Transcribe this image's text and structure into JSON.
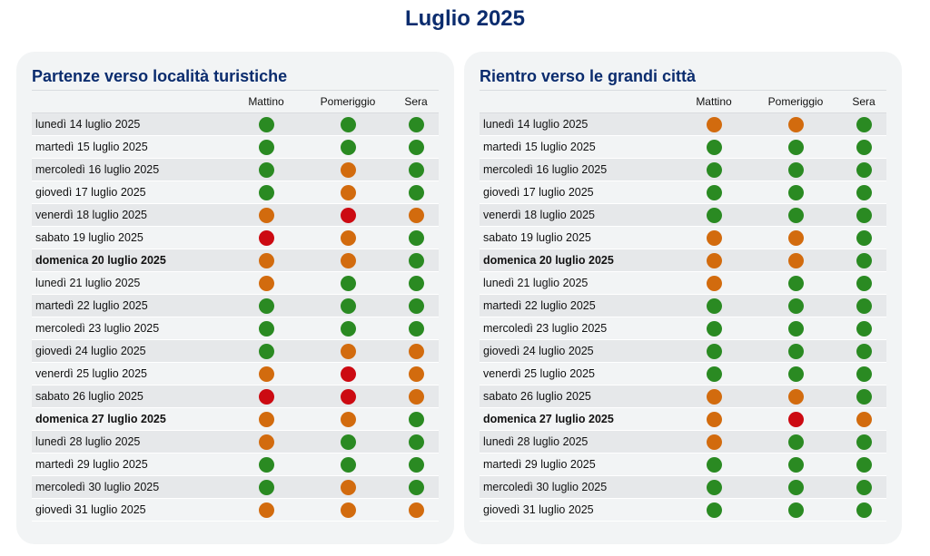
{
  "page_title": "Luglio 2025",
  "colors": {
    "green": "#2a8a22",
    "orange": "#d26b0e",
    "red": "#cc0a12",
    "title": "#0b2c6e"
  },
  "columns": [
    "Mattino",
    "Pomeriggio",
    "Sera"
  ],
  "panels": [
    {
      "title": "Partenze verso località turistiche",
      "rows": [
        {
          "date": "lunedì 14 luglio 2025",
          "sunday": false,
          "levels": [
            "green",
            "green",
            "green"
          ]
        },
        {
          "date": "martedì 15 luglio 2025",
          "sunday": false,
          "levels": [
            "green",
            "green",
            "green"
          ]
        },
        {
          "date": "mercoledì 16 luglio 2025",
          "sunday": false,
          "levels": [
            "green",
            "orange",
            "green"
          ]
        },
        {
          "date": "giovedì 17 luglio 2025",
          "sunday": false,
          "levels": [
            "green",
            "orange",
            "green"
          ]
        },
        {
          "date": "venerdì 18 luglio 2025",
          "sunday": false,
          "levels": [
            "orange",
            "red",
            "orange"
          ]
        },
        {
          "date": "sabato 19 luglio 2025",
          "sunday": false,
          "levels": [
            "red",
            "orange",
            "green"
          ]
        },
        {
          "date": "domenica 20 luglio 2025",
          "sunday": true,
          "levels": [
            "orange",
            "orange",
            "green"
          ]
        },
        {
          "date": "lunedì 21 luglio 2025",
          "sunday": false,
          "levels": [
            "orange",
            "green",
            "green"
          ]
        },
        {
          "date": "martedì 22 luglio 2025",
          "sunday": false,
          "levels": [
            "green",
            "green",
            "green"
          ]
        },
        {
          "date": "mercoledì 23 luglio 2025",
          "sunday": false,
          "levels": [
            "green",
            "green",
            "green"
          ]
        },
        {
          "date": "giovedì 24 luglio 2025",
          "sunday": false,
          "levels": [
            "green",
            "orange",
            "orange"
          ]
        },
        {
          "date": "venerdì 25 luglio 2025",
          "sunday": false,
          "levels": [
            "orange",
            "red",
            "orange"
          ]
        },
        {
          "date": "sabato 26 luglio 2025",
          "sunday": false,
          "levels": [
            "red",
            "red",
            "orange"
          ]
        },
        {
          "date": "domenica 27 luglio 2025",
          "sunday": true,
          "levels": [
            "orange",
            "orange",
            "green"
          ]
        },
        {
          "date": "lunedì 28 luglio 2025",
          "sunday": false,
          "levels": [
            "orange",
            "green",
            "green"
          ]
        },
        {
          "date": "martedì 29 luglio 2025",
          "sunday": false,
          "levels": [
            "green",
            "green",
            "green"
          ]
        },
        {
          "date": "mercoledì 30 luglio 2025",
          "sunday": false,
          "levels": [
            "green",
            "orange",
            "green"
          ]
        },
        {
          "date": "giovedì 31 luglio 2025",
          "sunday": false,
          "levels": [
            "orange",
            "orange",
            "orange"
          ]
        }
      ]
    },
    {
      "title": "Rientro verso le grandi città",
      "rows": [
        {
          "date": "lunedì 14 luglio 2025",
          "sunday": false,
          "levels": [
            "orange",
            "orange",
            "green"
          ]
        },
        {
          "date": "martedì 15 luglio 2025",
          "sunday": false,
          "levels": [
            "green",
            "green",
            "green"
          ]
        },
        {
          "date": "mercoledì 16 luglio 2025",
          "sunday": false,
          "levels": [
            "green",
            "green",
            "green"
          ]
        },
        {
          "date": "giovedì 17 luglio 2025",
          "sunday": false,
          "levels": [
            "green",
            "green",
            "green"
          ]
        },
        {
          "date": "venerdì 18 luglio 2025",
          "sunday": false,
          "levels": [
            "green",
            "green",
            "green"
          ]
        },
        {
          "date": "sabato 19 luglio 2025",
          "sunday": false,
          "levels": [
            "orange",
            "orange",
            "green"
          ]
        },
        {
          "date": "domenica 20 luglio 2025",
          "sunday": true,
          "levels": [
            "orange",
            "orange",
            "green"
          ]
        },
        {
          "date": "lunedì 21 luglio 2025",
          "sunday": false,
          "levels": [
            "orange",
            "green",
            "green"
          ]
        },
        {
          "date": "martedì 22 luglio 2025",
          "sunday": false,
          "levels": [
            "green",
            "green",
            "green"
          ]
        },
        {
          "date": "mercoledì 23 luglio 2025",
          "sunday": false,
          "levels": [
            "green",
            "green",
            "green"
          ]
        },
        {
          "date": "giovedì 24 luglio 2025",
          "sunday": false,
          "levels": [
            "green",
            "green",
            "green"
          ]
        },
        {
          "date": "venerdì 25 luglio 2025",
          "sunday": false,
          "levels": [
            "green",
            "green",
            "green"
          ]
        },
        {
          "date": "sabato 26 luglio 2025",
          "sunday": false,
          "levels": [
            "orange",
            "orange",
            "green"
          ]
        },
        {
          "date": "domenica 27 luglio 2025",
          "sunday": true,
          "levels": [
            "orange",
            "red",
            "orange"
          ]
        },
        {
          "date": "lunedì 28 luglio 2025",
          "sunday": false,
          "levels": [
            "orange",
            "green",
            "green"
          ]
        },
        {
          "date": "martedì 29 luglio 2025",
          "sunday": false,
          "levels": [
            "green",
            "green",
            "green"
          ]
        },
        {
          "date": "mercoledì 30 luglio 2025",
          "sunday": false,
          "levels": [
            "green",
            "green",
            "green"
          ]
        },
        {
          "date": "giovedì 31 luglio 2025",
          "sunday": false,
          "levels": [
            "green",
            "green",
            "green"
          ]
        }
      ]
    }
  ]
}
